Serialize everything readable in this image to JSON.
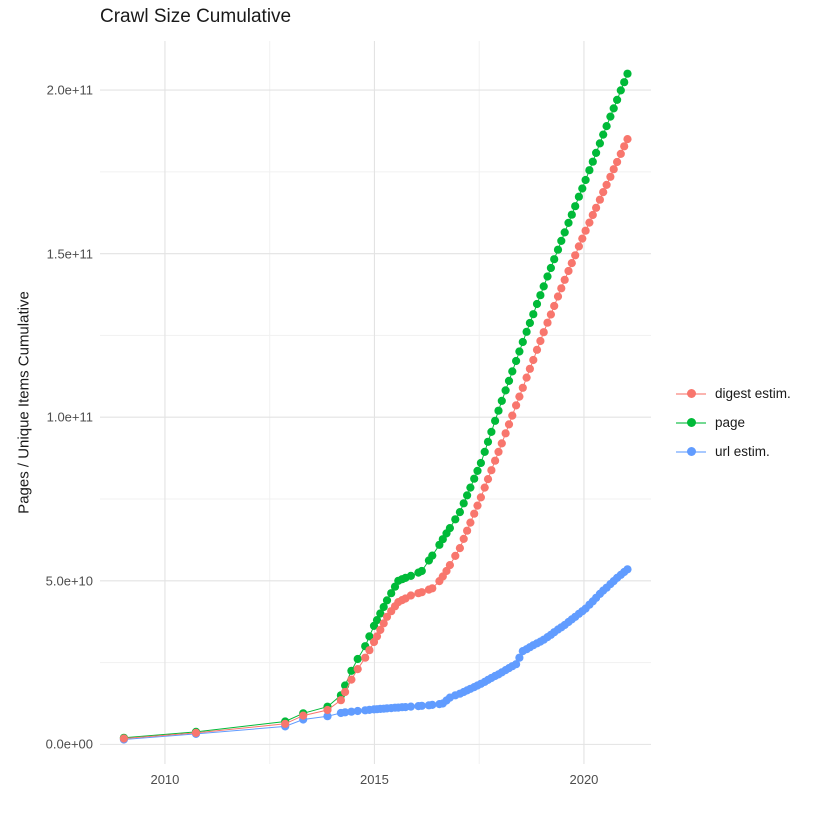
{
  "title": "Crawl Size Cumulative",
  "axes": {
    "y_title": "Pages / Unique Items Cumulative",
    "x_tick_labels": [
      "2010",
      "2015",
      "2020"
    ],
    "y_tick_labels": [
      "0.0e+00",
      "5.0e+10",
      "1.0e+11",
      "1.5e+11",
      "2.0e+11"
    ]
  },
  "legend": {
    "items": [
      {
        "label": "digest estim.",
        "color": "#F8766D"
      },
      {
        "label": "page",
        "color": "#00BA38"
      },
      {
        "label": "url estim.",
        "color": "#619CFF"
      }
    ]
  },
  "colors": {
    "background": "#ffffff",
    "grid_major": "#E3E3E3",
    "grid_minor": "#F1F1F1",
    "axis_text": "#4d4d4d",
    "digest": "#F8766D",
    "page": "#00BA38",
    "url": "#619CFF"
  },
  "chart_data": {
    "type": "line",
    "title": "Crawl Size Cumulative",
    "xlabel": "",
    "ylabel": "Pages / Unique Items Cumulative",
    "xlim": [
      2008.45,
      2021.6
    ],
    "ylim": [
      -6000000000,
      215000000000
    ],
    "grid": true,
    "legend_position": "right",
    "x_ticks": {
      "major": [
        2010,
        2015,
        2020
      ],
      "labels": [
        "2010",
        "2015",
        "2020"
      ],
      "minor": [
        2012.5,
        2017.5
      ]
    },
    "y_ticks": {
      "major": [
        0,
        50000000000,
        100000000000,
        150000000000,
        200000000000
      ],
      "labels": [
        "0.0e+00",
        "5.0e+10",
        "1.0e+11",
        "1.5e+11",
        "2.0e+11"
      ],
      "minor": [
        25000000000,
        75000000000,
        125000000000,
        175000000000
      ]
    },
    "unit_multiplier": 1000000000,
    "x": [
      2009.02,
      2010.74,
      2012.87,
      2013.3,
      2013.88,
      2014.2,
      2014.3,
      2014.45,
      2014.6,
      2014.78,
      2014.88,
      2014.99,
      2015.06,
      2015.14,
      2015.22,
      2015.3,
      2015.4,
      2015.49,
      2015.57,
      2015.66,
      2015.74,
      2015.87,
      2016.05,
      2016.13,
      2016.3,
      2016.38,
      2016.55,
      2016.63,
      2016.72,
      2016.8,
      2016.93,
      2017.04,
      2017.13,
      2017.21,
      2017.29,
      2017.38,
      2017.46,
      2017.54,
      2017.63,
      2017.71,
      2017.79,
      2017.88,
      2017.96,
      2018.04,
      2018.13,
      2018.21,
      2018.29,
      2018.38,
      2018.46,
      2018.54,
      2018.63,
      2018.71,
      2018.79,
      2018.88,
      2018.96,
      2019.04,
      2019.13,
      2019.21,
      2019.29,
      2019.38,
      2019.46,
      2019.54,
      2019.63,
      2019.71,
      2019.79,
      2019.88,
      2019.96,
      2020.04,
      2020.13,
      2020.21,
      2020.29,
      2020.38,
      2020.46,
      2020.54,
      2020.63,
      2020.71,
      2020.79,
      2020.88,
      2020.96,
      2021.04
    ],
    "series": [
      {
        "name": "digest estim.",
        "color": "#F8766D",
        "values": [
          1.8,
          3.5,
          6.3,
          8.8,
          10.5,
          13.5,
          16,
          19.8,
          23,
          26.5,
          28.8,
          31.3,
          33,
          35,
          37,
          39,
          40.7,
          42.2,
          43.5,
          44.1,
          44.6,
          45.5,
          46.2,
          46.5,
          47.3,
          47.7,
          49.9,
          51.3,
          53,
          54.8,
          57.6,
          60,
          62.8,
          65.3,
          67.8,
          70.5,
          73,
          75.5,
          78.5,
          81.1,
          83.8,
          86.7,
          89.4,
          92,
          95.1,
          97.8,
          100.5,
          103.6,
          106.3,
          109,
          112.1,
          114.8,
          117.5,
          120.6,
          123.3,
          126,
          128.9,
          131.4,
          134,
          136.9,
          139.4,
          142,
          144.7,
          147.1,
          149.5,
          152.2,
          154.6,
          157,
          159.5,
          161.8,
          164,
          166.5,
          168.8,
          171,
          173.5,
          175.8,
          178,
          180.5,
          182.8,
          185
        ]
      },
      {
        "name": "page",
        "color": "#00BA38",
        "values": [
          2.0,
          3.8,
          7.0,
          9.5,
          11.5,
          15,
          18,
          22.5,
          26.1,
          30,
          33,
          36.2,
          38,
          40,
          42,
          44,
          46.2,
          48.2,
          50,
          50.5,
          50.9,
          51.5,
          52.5,
          53,
          56.2,
          57.7,
          61,
          62.7,
          64.5,
          66.1,
          68.8,
          71,
          73.7,
          76.1,
          78.5,
          81.2,
          83.6,
          86,
          89.4,
          92.5,
          95.5,
          98.9,
          102,
          105,
          108.2,
          111.1,
          114,
          117.2,
          120.1,
          123,
          126.1,
          128.8,
          131.5,
          134.6,
          137.3,
          140,
          143,
          145.6,
          148.3,
          151.2,
          153.9,
          156.5,
          159.4,
          161.9,
          164.5,
          167.4,
          169.9,
          172.5,
          175.5,
          178.1,
          180.8,
          183.7,
          186.4,
          189,
          191.9,
          194.4,
          197,
          199.9,
          202.4,
          205
        ]
      },
      {
        "name": "url estim.",
        "color": "#619CFF",
        "values": [
          1.5,
          3.2,
          5.5,
          7.6,
          8.6,
          9.6,
          9.8,
          10.0,
          10.2,
          10.4,
          10.55,
          10.7,
          10.75,
          10.85,
          10.9,
          11.0,
          11.1,
          11.2,
          11.25,
          11.35,
          11.4,
          11.55,
          11.7,
          11.8,
          11.95,
          12.05,
          12.3,
          12.5,
          13.4,
          14.3,
          15.0,
          15.5,
          16.0,
          16.5,
          17.0,
          17.5,
          18.0,
          18.5,
          19.1,
          19.7,
          20.3,
          20.9,
          21.4,
          22,
          22.7,
          23.3,
          23.9,
          24.5,
          26.5,
          28.5,
          29.1,
          29.7,
          30.3,
          30.9,
          31.4,
          32,
          32.8,
          33.5,
          34.3,
          35.1,
          35.8,
          36.5,
          37.4,
          38.2,
          39.0,
          39.9,
          40.7,
          41.5,
          42.7,
          43.7,
          44.8,
          46,
          47,
          47.9,
          49,
          49.9,
          50.9,
          51.8,
          52.7,
          53.5
        ]
      }
    ],
    "draw_order": [
      2,
      1,
      0
    ]
  }
}
